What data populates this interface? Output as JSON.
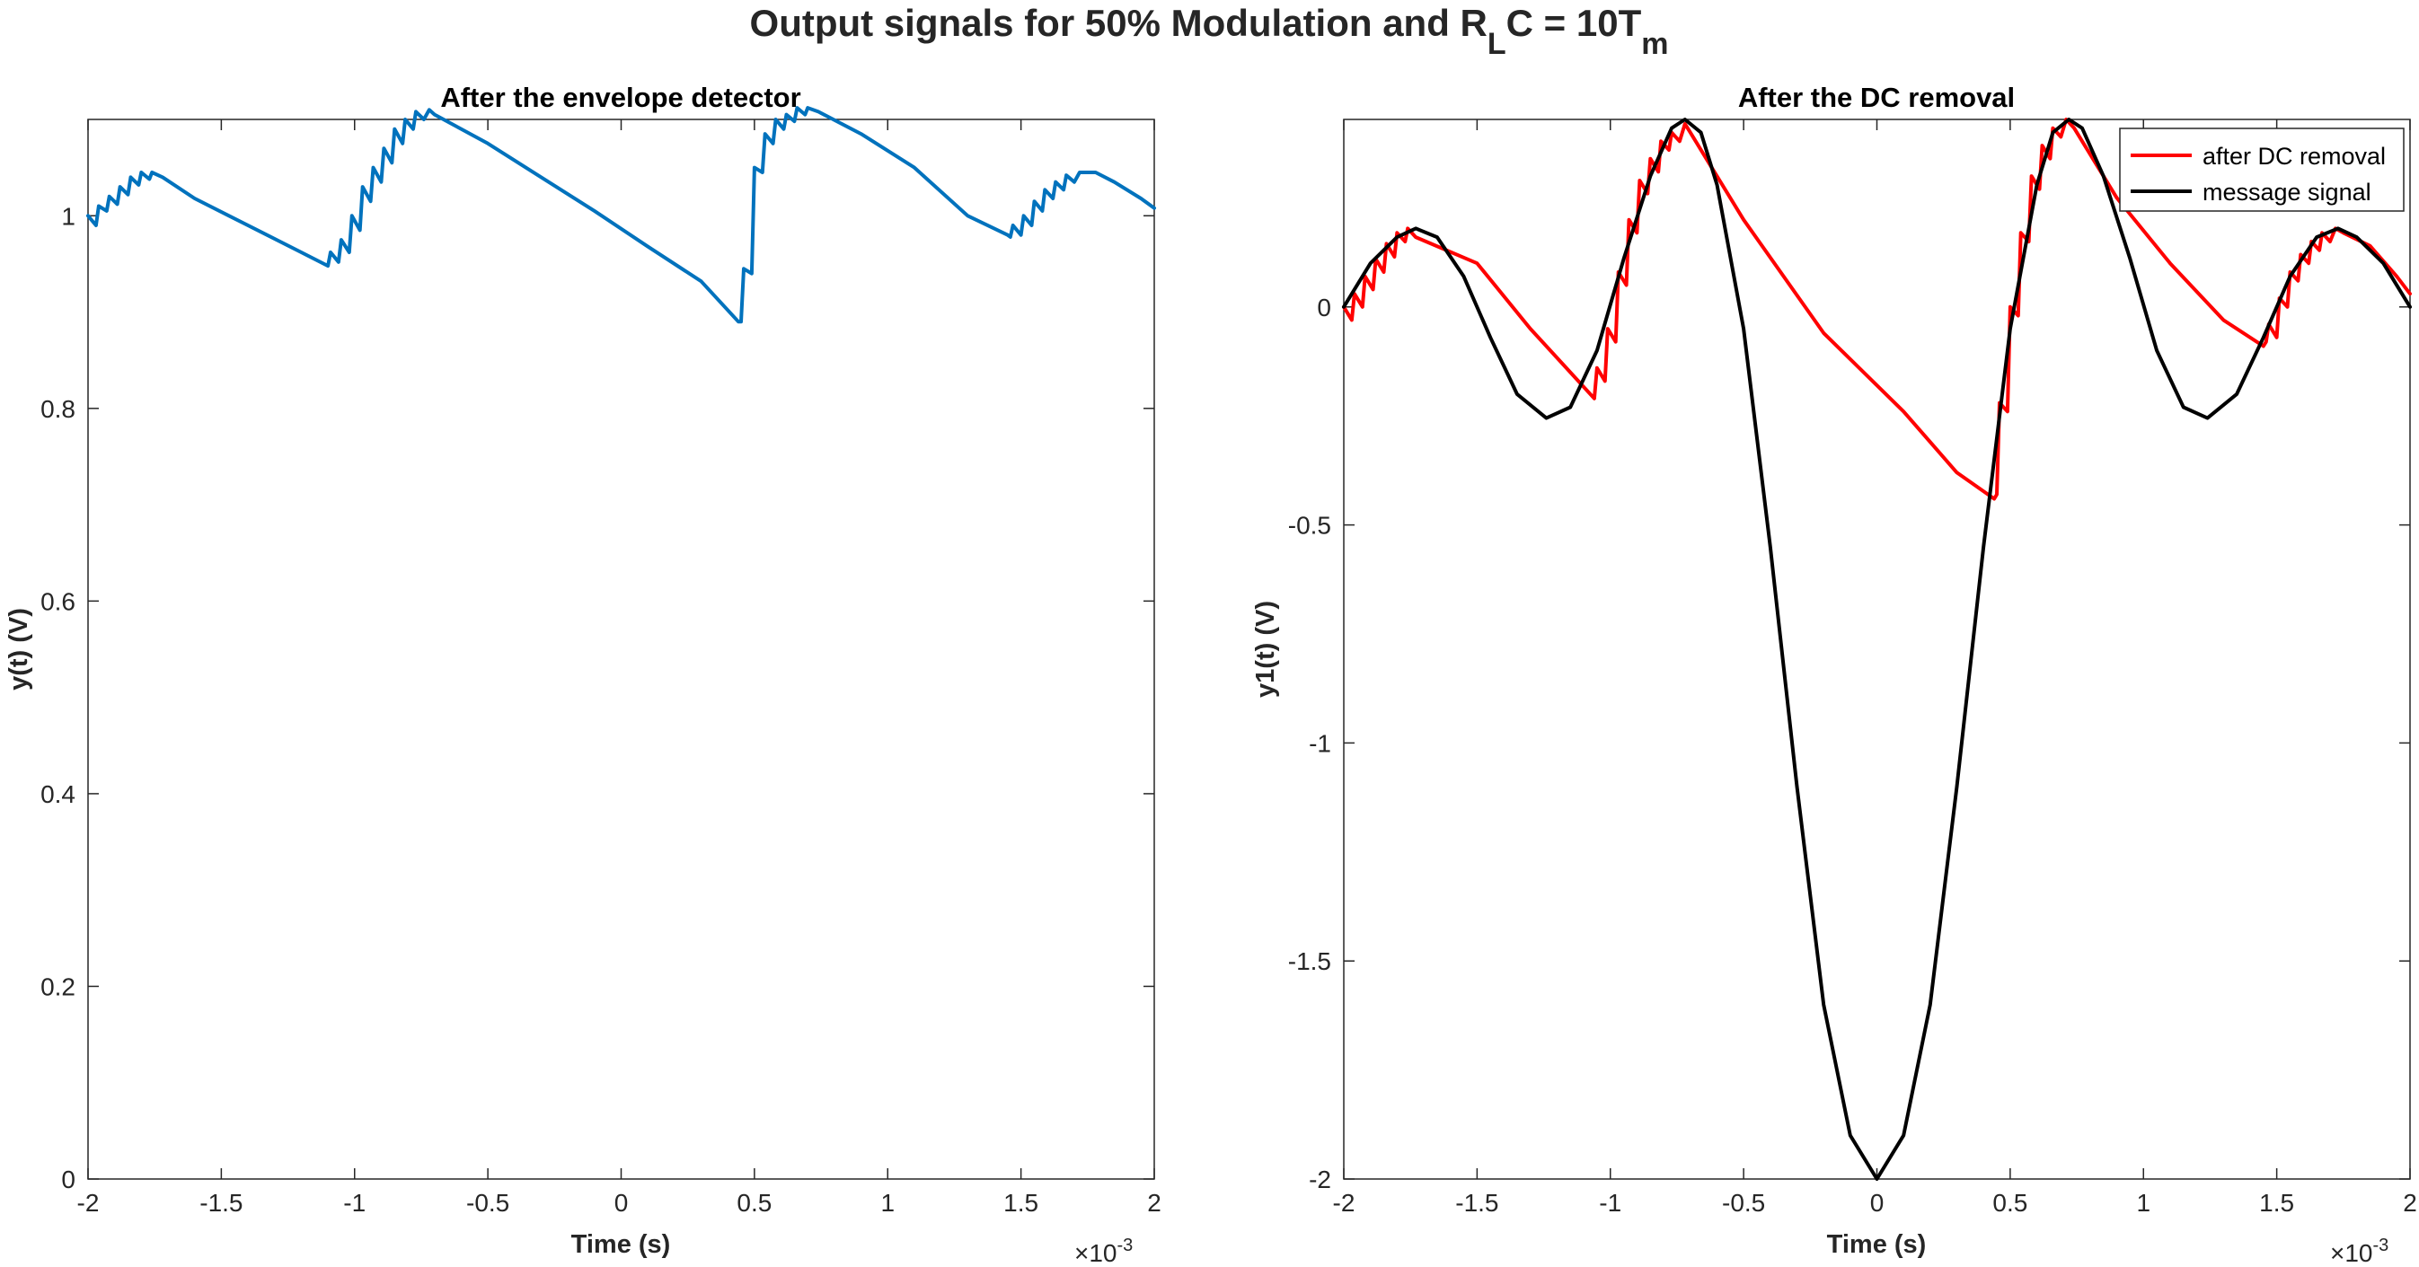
{
  "figure": {
    "suptitle_main": "Output signals for 50% Modulation and R",
    "suptitle_sub1": "L",
    "suptitle_mid": "C = 10T",
    "suptitle_sub2": "m"
  },
  "colors": {
    "envelope": "#0072BD",
    "dc_removed": "#FF0000",
    "message": "#000000",
    "axis": "#262626"
  },
  "chart_data": [
    {
      "type": "line",
      "title": "After the envelope detector",
      "xlabel": "Time (s)",
      "ylabel": "y(t) (V)",
      "x_exponent_base": "×10",
      "x_exponent_power": "-3",
      "xlim": [
        -2,
        2
      ],
      "ylim": [
        0,
        1.1
      ],
      "xticks": [
        -2,
        -1.5,
        -1,
        -0.5,
        0,
        0.5,
        1,
        1.5,
        2
      ],
      "xtick_labels": [
        "-2",
        "-1.5",
        "-1",
        "-0.5",
        "0",
        "0.5",
        "1",
        "1.5",
        "2"
      ],
      "yticks": [
        0,
        0.2,
        0.4,
        0.6,
        0.8,
        1
      ],
      "ytick_labels": [
        "0",
        "0.2",
        "0.4",
        "0.6",
        "0.8",
        "1"
      ],
      "grid": false,
      "series": [
        {
          "color": "#0072BD",
          "points": [
            [
              -2,
              1.0
            ],
            [
              -1.97,
              0.99
            ],
            [
              -1.96,
              1.01
            ],
            [
              -1.93,
              1.005
            ],
            [
              -1.92,
              1.02
            ],
            [
              -1.89,
              1.012
            ],
            [
              -1.88,
              1.03
            ],
            [
              -1.85,
              1.022
            ],
            [
              -1.84,
              1.04
            ],
            [
              -1.81,
              1.032
            ],
            [
              -1.8,
              1.045
            ],
            [
              -1.77,
              1.038
            ],
            [
              -1.76,
              1.045
            ],
            [
              -1.72,
              1.04
            ],
            [
              -1.6,
              1.018
            ],
            [
              -1.4,
              0.99
            ],
            [
              -1.2,
              0.962
            ],
            [
              -1.1,
              0.948
            ],
            [
              -1.09,
              0.962
            ],
            [
              -1.06,
              0.952
            ],
            [
              -1.05,
              0.975
            ],
            [
              -1.02,
              0.962
            ],
            [
              -1.01,
              1.0
            ],
            [
              -0.98,
              0.985
            ],
            [
              -0.97,
              1.03
            ],
            [
              -0.94,
              1.015
            ],
            [
              -0.93,
              1.05
            ],
            [
              -0.9,
              1.035
            ],
            [
              -0.89,
              1.07
            ],
            [
              -0.86,
              1.055
            ],
            [
              -0.85,
              1.09
            ],
            [
              -0.82,
              1.075
            ],
            [
              -0.81,
              1.1
            ],
            [
              -0.78,
              1.09
            ],
            [
              -0.77,
              1.108
            ],
            [
              -0.74,
              1.1
            ],
            [
              -0.72,
              1.11
            ],
            [
              -0.7,
              1.105
            ],
            [
              -0.5,
              1.075
            ],
            [
              -0.3,
              1.04
            ],
            [
              -0.1,
              1.005
            ],
            [
              0.1,
              0.968
            ],
            [
              0.3,
              0.932
            ],
            [
              0.44,
              0.89
            ],
            [
              0.45,
              0.89
            ],
            [
              0.46,
              0.945
            ],
            [
              0.49,
              0.94
            ],
            [
              0.5,
              1.05
            ],
            [
              0.53,
              1.045
            ],
            [
              0.54,
              1.085
            ],
            [
              0.57,
              1.075
            ],
            [
              0.58,
              1.1
            ],
            [
              0.61,
              1.09
            ],
            [
              0.62,
              1.105
            ],
            [
              0.65,
              1.098
            ],
            [
              0.66,
              1.112
            ],
            [
              0.69,
              1.105
            ],
            [
              0.7,
              1.112
            ],
            [
              0.74,
              1.108
            ],
            [
              0.9,
              1.085
            ],
            [
              1.1,
              1.05
            ],
            [
              1.3,
              1.0
            ],
            [
              1.45,
              0.98
            ],
            [
              1.46,
              0.978
            ],
            [
              1.47,
              0.99
            ],
            [
              1.5,
              0.98
            ],
            [
              1.51,
              1.0
            ],
            [
              1.54,
              0.99
            ],
            [
              1.55,
              1.015
            ],
            [
              1.58,
              1.005
            ],
            [
              1.59,
              1.027
            ],
            [
              1.62,
              1.018
            ],
            [
              1.63,
              1.035
            ],
            [
              1.66,
              1.027
            ],
            [
              1.67,
              1.042
            ],
            [
              1.7,
              1.035
            ],
            [
              1.72,
              1.045
            ],
            [
              1.78,
              1.045
            ],
            [
              1.85,
              1.035
            ],
            [
              1.95,
              1.018
            ],
            [
              2.0,
              1.008
            ]
          ]
        }
      ]
    },
    {
      "type": "line",
      "title": "After the DC removal",
      "xlabel": "Time (s)",
      "ylabel": "y1(t) (V)",
      "x_exponent_base": "×10",
      "x_exponent_power": "-3",
      "xlim": [
        -2,
        2
      ],
      "ylim": [
        -2,
        0.43
      ],
      "xticks": [
        -2,
        -1.5,
        -1,
        -0.5,
        0,
        0.5,
        1,
        1.5,
        2
      ],
      "xtick_labels": [
        "-2",
        "-1.5",
        "-1",
        "-0.5",
        "0",
        "0.5",
        "1",
        "1.5",
        "2"
      ],
      "yticks": [
        -2,
        -1.5,
        -1,
        -0.5,
        0
      ],
      "ytick_labels": [
        "-2",
        "-1.5",
        "-1",
        "-0.5",
        "0"
      ],
      "grid": false,
      "legend_position": "top-right",
      "series": [
        {
          "name": "after DC removal",
          "color": "#FF0000",
          "points": [
            [
              -2,
              0.0
            ],
            [
              -1.97,
              -0.03
            ],
            [
              -1.96,
              0.03
            ],
            [
              -1.93,
              0.0
            ],
            [
              -1.92,
              0.07
            ],
            [
              -1.89,
              0.04
            ],
            [
              -1.88,
              0.11
            ],
            [
              -1.85,
              0.08
            ],
            [
              -1.84,
              0.145
            ],
            [
              -1.81,
              0.115
            ],
            [
              -1.8,
              0.17
            ],
            [
              -1.77,
              0.15
            ],
            [
              -1.76,
              0.18
            ],
            [
              -1.73,
              0.16
            ],
            [
              -1.5,
              0.1
            ],
            [
              -1.3,
              -0.05
            ],
            [
              -1.15,
              -0.15
            ],
            [
              -1.06,
              -0.21
            ],
            [
              -1.05,
              -0.14
            ],
            [
              -1.02,
              -0.17
            ],
            [
              -1.01,
              -0.05
            ],
            [
              -0.98,
              -0.08
            ],
            [
              -0.97,
              0.08
            ],
            [
              -0.94,
              0.05
            ],
            [
              -0.93,
              0.2
            ],
            [
              -0.9,
              0.17
            ],
            [
              -0.89,
              0.29
            ],
            [
              -0.86,
              0.26
            ],
            [
              -0.85,
              0.34
            ],
            [
              -0.82,
              0.31
            ],
            [
              -0.81,
              0.38
            ],
            [
              -0.78,
              0.36
            ],
            [
              -0.77,
              0.4
            ],
            [
              -0.74,
              0.38
            ],
            [
              -0.72,
              0.42
            ],
            [
              -0.7,
              0.4
            ],
            [
              -0.5,
              0.2
            ],
            [
              -0.2,
              -0.06
            ],
            [
              0.1,
              -0.24
            ],
            [
              0.3,
              -0.38
            ],
            [
              0.44,
              -0.44
            ],
            [
              0.45,
              -0.43
            ],
            [
              0.46,
              -0.22
            ],
            [
              0.49,
              -0.24
            ],
            [
              0.5,
              0.0
            ],
            [
              0.53,
              -0.02
            ],
            [
              0.54,
              0.17
            ],
            [
              0.57,
              0.15
            ],
            [
              0.58,
              0.3
            ],
            [
              0.61,
              0.27
            ],
            [
              0.62,
              0.37
            ],
            [
              0.65,
              0.34
            ],
            [
              0.66,
              0.41
            ],
            [
              0.69,
              0.39
            ],
            [
              0.71,
              0.43
            ],
            [
              0.74,
              0.41
            ],
            [
              0.9,
              0.25
            ],
            [
              1.1,
              0.1
            ],
            [
              1.3,
              -0.03
            ],
            [
              1.45,
              -0.09
            ],
            [
              1.46,
              -0.08
            ],
            [
              1.47,
              -0.04
            ],
            [
              1.5,
              -0.07
            ],
            [
              1.51,
              0.02
            ],
            [
              1.54,
              0.0
            ],
            [
              1.55,
              0.08
            ],
            [
              1.58,
              0.06
            ],
            [
              1.59,
              0.12
            ],
            [
              1.62,
              0.1
            ],
            [
              1.63,
              0.15
            ],
            [
              1.66,
              0.13
            ],
            [
              1.67,
              0.17
            ],
            [
              1.7,
              0.15
            ],
            [
              1.72,
              0.18
            ],
            [
              1.75,
              0.17
            ],
            [
              1.85,
              0.14
            ],
            [
              1.95,
              0.07
            ],
            [
              2.0,
              0.03
            ]
          ]
        },
        {
          "name": "message signal",
          "color": "#000000",
          "points": [
            [
              -2,
              0.0
            ],
            [
              -1.9,
              0.1
            ],
            [
              -1.8,
              0.16
            ],
            [
              -1.73,
              0.18
            ],
            [
              -1.65,
              0.16
            ],
            [
              -1.55,
              0.07
            ],
            [
              -1.45,
              -0.07
            ],
            [
              -1.35,
              -0.2
            ],
            [
              -1.24,
              -0.255
            ],
            [
              -1.15,
              -0.23
            ],
            [
              -1.05,
              -0.1
            ],
            [
              -0.95,
              0.11
            ],
            [
              -0.85,
              0.3
            ],
            [
              -0.77,
              0.41
            ],
            [
              -0.72,
              0.43
            ],
            [
              -0.66,
              0.4
            ],
            [
              -0.6,
              0.28
            ],
            [
              -0.5,
              -0.05
            ],
            [
              -0.4,
              -0.55
            ],
            [
              -0.3,
              -1.1
            ],
            [
              -0.2,
              -1.6
            ],
            [
              -0.1,
              -1.9
            ],
            [
              0,
              -2.0
            ],
            [
              0.1,
              -1.9
            ],
            [
              0.2,
              -1.6
            ],
            [
              0.3,
              -1.1
            ],
            [
              0.4,
              -0.55
            ],
            [
              0.5,
              -0.05
            ],
            [
              0.6,
              0.28
            ],
            [
              0.66,
              0.4
            ],
            [
              0.72,
              0.43
            ],
            [
              0.77,
              0.41
            ],
            [
              0.85,
              0.3
            ],
            [
              0.95,
              0.11
            ],
            [
              1.05,
              -0.1
            ],
            [
              1.15,
              -0.23
            ],
            [
              1.24,
              -0.255
            ],
            [
              1.35,
              -0.2
            ],
            [
              1.45,
              -0.07
            ],
            [
              1.55,
              0.07
            ],
            [
              1.65,
              0.16
            ],
            [
              1.73,
              0.18
            ],
            [
              1.8,
              0.16
            ],
            [
              1.9,
              0.1
            ],
            [
              2.0,
              0.0
            ]
          ]
        }
      ]
    }
  ]
}
